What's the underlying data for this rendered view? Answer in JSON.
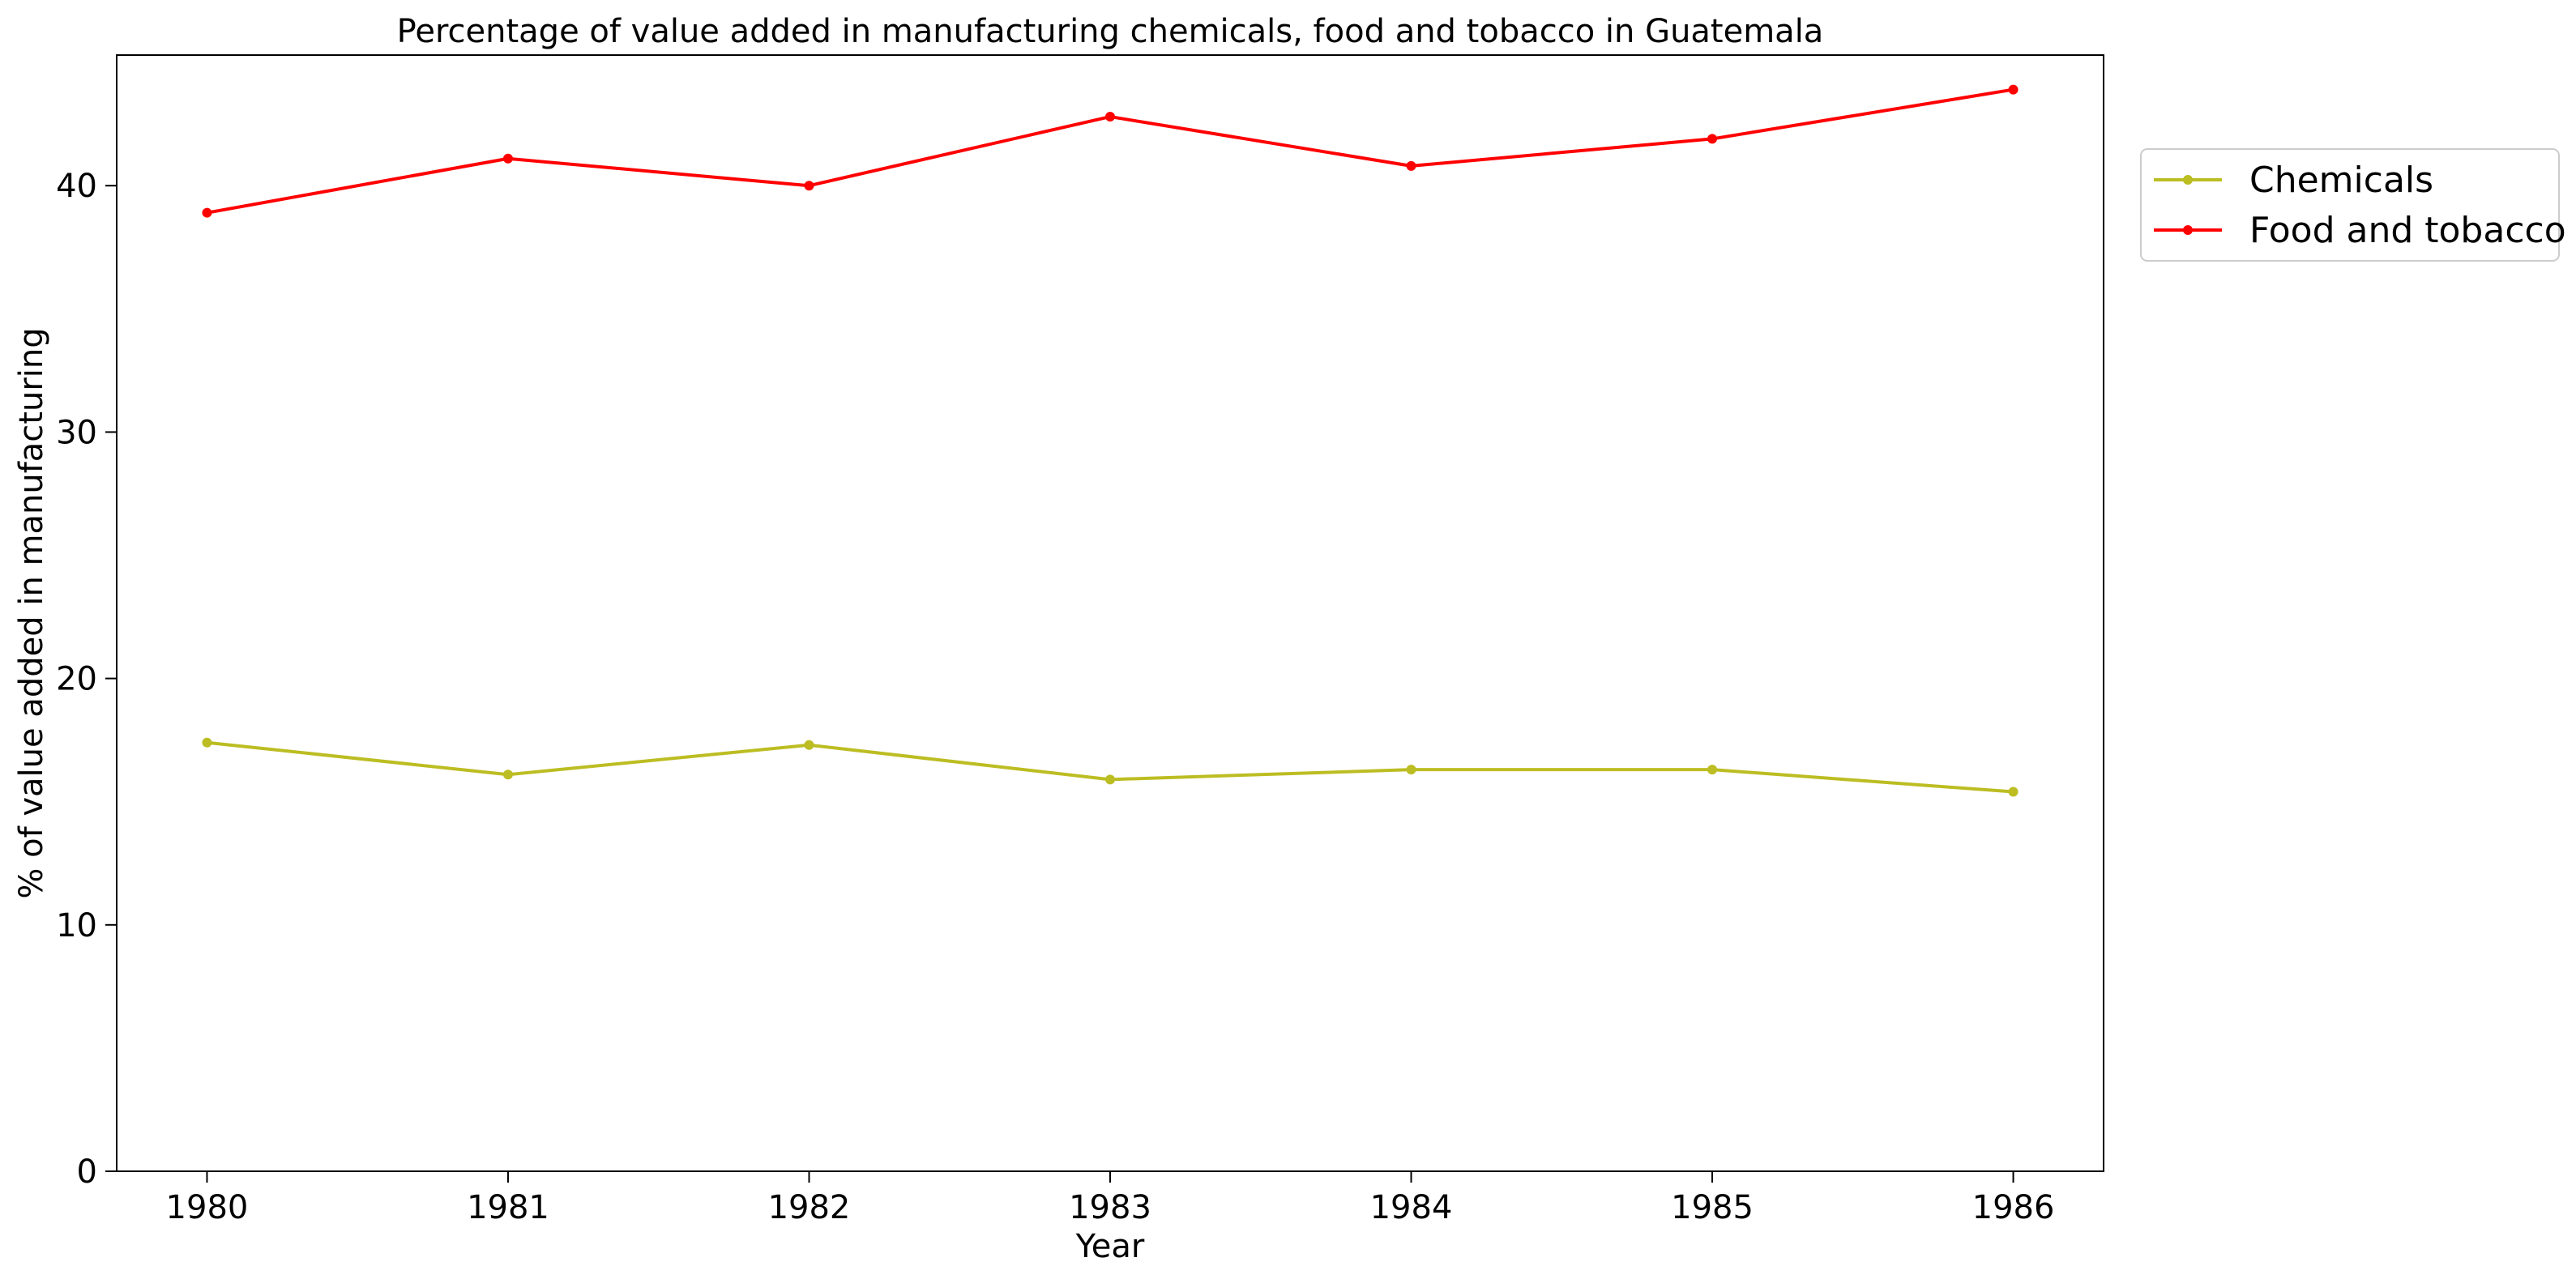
{
  "chart_data": {
    "type": "line",
    "title": "Percentage of value added in manufacturing chemicals, food and tobacco in Guatemala",
    "xlabel": "Year",
    "ylabel": "% of value added in manufacturing",
    "x": [
      1980,
      1981,
      1982,
      1983,
      1984,
      1985,
      1986
    ],
    "x_tick_labels": [
      "1980",
      "1981",
      "1982",
      "1983",
      "1984",
      "1985",
      "1986"
    ],
    "y_ticks": [
      0,
      10,
      20,
      30,
      40
    ],
    "y_tick_labels": [
      "0",
      "10",
      "20",
      "30",
      "40"
    ],
    "xlim": [
      1979.7,
      1986.3
    ],
    "ylim": [
      0,
      45.3
    ],
    "grid": false,
    "legend_position": "upper-right-outside",
    "series": [
      {
        "name": "Chemicals",
        "color": "#bcbd22",
        "values": [
          17.4,
          16.1,
          17.3,
          15.9,
          16.3,
          16.3,
          15.4
        ]
      },
      {
        "name": "Food and tobacco",
        "color": "#ff0000",
        "values": [
          38.9,
          41.1,
          40.0,
          42.8,
          40.8,
          41.9,
          43.9
        ]
      }
    ]
  }
}
